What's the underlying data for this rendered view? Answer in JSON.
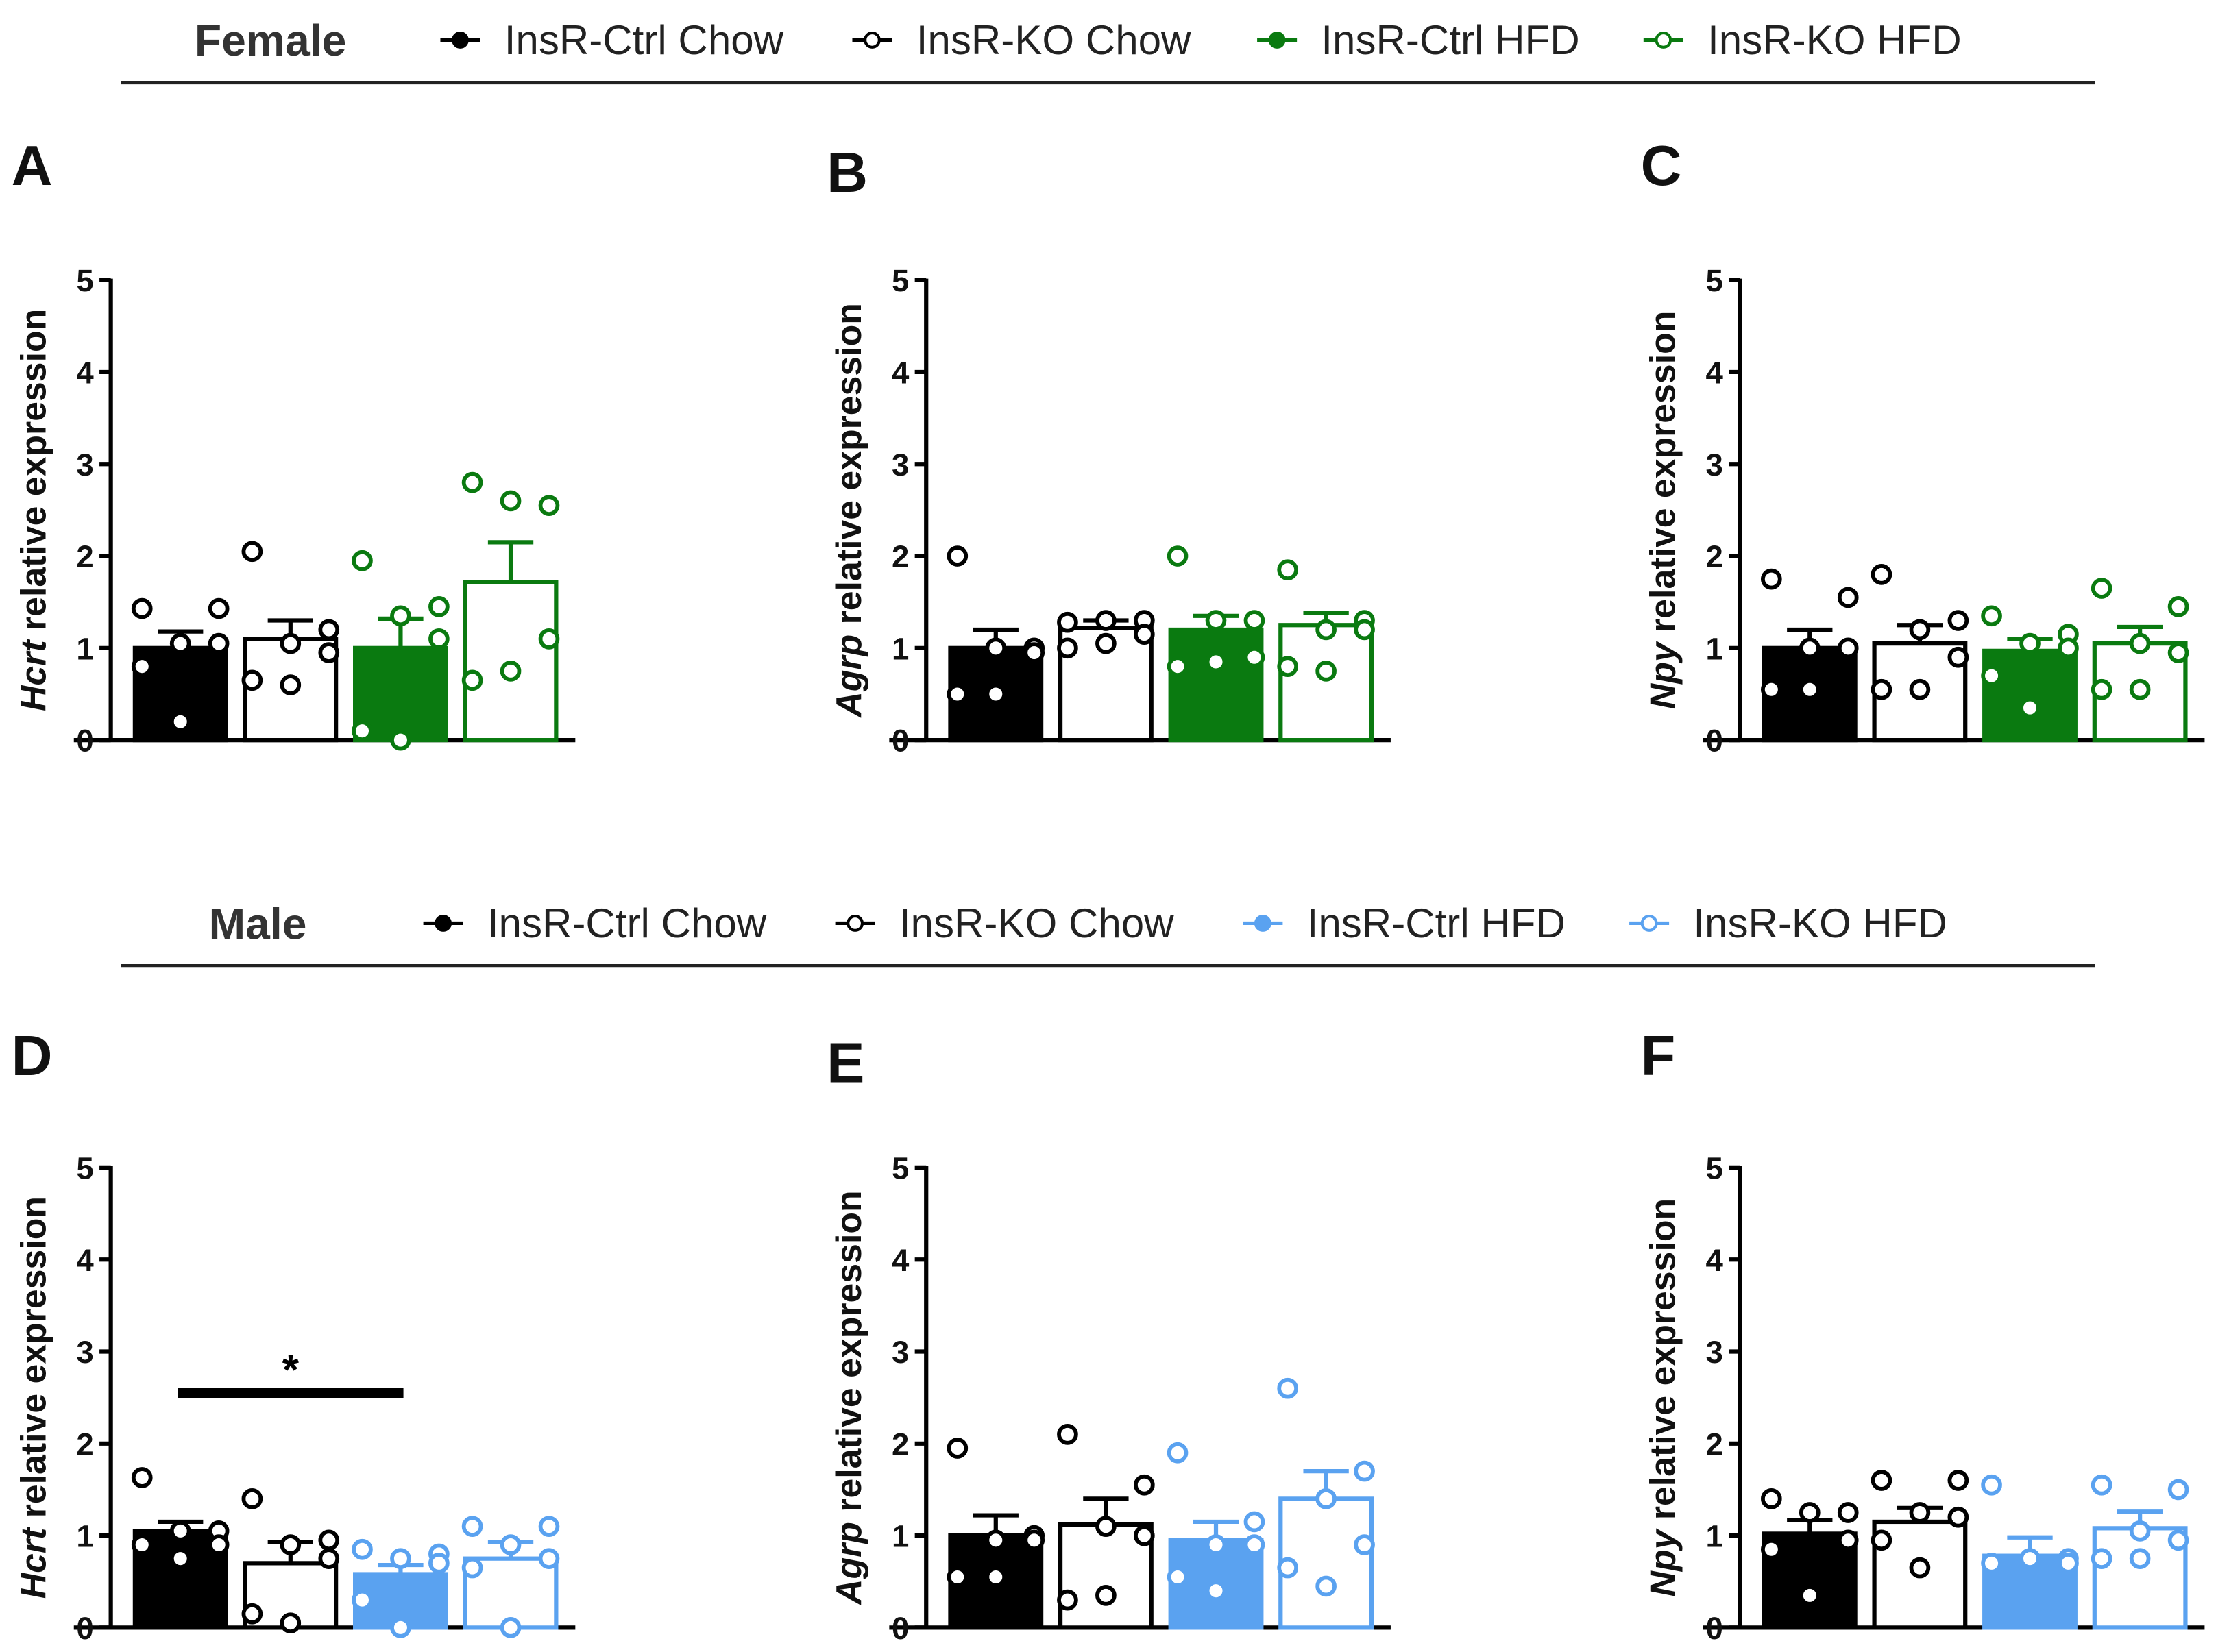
{
  "colors": {
    "black": "#000000",
    "green": "#0a7a10",
    "blue": "#5aa2f0"
  },
  "legends": [
    {
      "sex": "Female",
      "color": "#0a7a10",
      "items": [
        "InsR-Ctrl Chow",
        "InsR-KO Chow",
        "InsR-Ctrl HFD",
        "InsR-KO HFD"
      ]
    },
    {
      "sex": "Male",
      "color": "#5aa2f0",
      "items": [
        "InsR-Ctrl Chow",
        "InsR-KO Chow",
        "InsR-Ctrl HFD",
        "InsR-KO HFD"
      ]
    }
  ],
  "chart_data": [
    {
      "panel": "A",
      "type": "bar",
      "gene": "Hcrt",
      "ylabel_suffix": " relative expression",
      "ylim": [
        0,
        5
      ],
      "yticks": [
        0,
        1,
        2,
        3,
        4,
        5
      ],
      "group": "Female",
      "categories": [
        "InsR-Ctrl Chow",
        "InsR-KO Chow",
        "InsR-Ctrl HFD",
        "InsR-KO HFD"
      ],
      "means": [
        1.0,
        1.1,
        1.0,
        1.72
      ],
      "sem": [
        0.18,
        0.2,
        0.32,
        0.43
      ],
      "points": [
        [
          1.43,
          1.43,
          1.05,
          1.05,
          0.8,
          0.2
        ],
        [
          2.05,
          1.2,
          1.05,
          0.95,
          0.65,
          0.6
        ],
        [
          1.95,
          1.45,
          1.35,
          1.1,
          0.1,
          0.0
        ],
        [
          2.8,
          2.55,
          2.6,
          1.1,
          0.65,
          0.75
        ]
      ]
    },
    {
      "panel": "B",
      "type": "bar",
      "gene": "Agrp",
      "ylabel_suffix": " relative expression",
      "ylim": [
        0,
        5
      ],
      "yticks": [
        0,
        1,
        2,
        3,
        4,
        5
      ],
      "group": "Female",
      "categories": [
        "InsR-Ctrl Chow",
        "InsR-KO Chow",
        "InsR-Ctrl HFD",
        "InsR-KO HFD"
      ],
      "means": [
        1.0,
        1.22,
        1.2,
        1.25
      ],
      "sem": [
        0.2,
        0.08,
        0.15,
        0.13
      ],
      "points": [
        [
          2.0,
          1.0,
          1.0,
          0.95,
          0.5,
          0.5
        ],
        [
          1.28,
          1.3,
          1.3,
          1.15,
          1.0,
          1.05
        ],
        [
          2.0,
          1.3,
          1.3,
          0.9,
          0.8,
          0.85
        ],
        [
          1.85,
          1.3,
          1.2,
          1.2,
          0.8,
          0.75
        ]
      ]
    },
    {
      "panel": "C",
      "type": "bar",
      "gene": "Npy",
      "ylabel_suffix": " relative expression",
      "ylim": [
        0,
        5
      ],
      "yticks": [
        0,
        1,
        2,
        3,
        4,
        5
      ],
      "group": "Female",
      "categories": [
        "InsR-Ctrl Chow",
        "InsR-KO Chow",
        "InsR-Ctrl HFD",
        "InsR-KO HFD"
      ],
      "means": [
        1.0,
        1.05,
        0.97,
        1.05
      ],
      "sem": [
        0.2,
        0.2,
        0.13,
        0.18
      ],
      "points": [
        [
          1.75,
          1.55,
          1.0,
          1.0,
          0.55,
          0.55
        ],
        [
          1.8,
          1.3,
          1.2,
          0.9,
          0.55,
          0.55
        ],
        [
          1.35,
          1.15,
          1.05,
          1.0,
          0.7,
          0.35
        ],
        [
          1.65,
          1.45,
          1.05,
          0.95,
          0.55,
          0.55
        ]
      ]
    },
    {
      "panel": "D",
      "type": "bar",
      "gene": "Hcrt",
      "ylabel_suffix": " relative expression",
      "ylim": [
        0,
        5
      ],
      "yticks": [
        0,
        1,
        2,
        3,
        4,
        5
      ],
      "group": "Male",
      "categories": [
        "InsR-Ctrl Chow",
        "InsR-KO Chow",
        "InsR-Ctrl HFD",
        "InsR-KO HFD"
      ],
      "means": [
        1.05,
        0.7,
        0.58,
        0.75
      ],
      "sem": [
        0.1,
        0.23,
        0.1,
        0.18
      ],
      "points": [
        [
          1.63,
          1.05,
          1.05,
          0.9,
          0.9,
          0.75
        ],
        [
          1.4,
          0.95,
          0.9,
          0.75,
          0.15,
          0.05
        ],
        [
          0.85,
          0.8,
          0.75,
          0.7,
          0.3,
          0.0
        ],
        [
          1.1,
          1.1,
          0.9,
          0.75,
          0.65,
          0.0
        ]
      ],
      "significance": {
        "from": 0,
        "to": 2,
        "y": 2.55,
        "label": "*"
      }
    },
    {
      "panel": "E",
      "type": "bar",
      "gene": "Agrp",
      "ylabel_suffix": " relative expression",
      "ylim": [
        0,
        5
      ],
      "yticks": [
        0,
        1,
        2,
        3,
        4,
        5
      ],
      "group": "Male",
      "categories": [
        "InsR-Ctrl Chow",
        "InsR-KO Chow",
        "InsR-Ctrl HFD",
        "InsR-KO HFD"
      ],
      "means": [
        1.0,
        1.12,
        0.95,
        1.4
      ],
      "sem": [
        0.22,
        0.28,
        0.2,
        0.3
      ],
      "points": [
        [
          1.95,
          1.0,
          0.95,
          0.95,
          0.55,
          0.55
        ],
        [
          2.1,
          1.55,
          1.1,
          1.0,
          0.3,
          0.35
        ],
        [
          1.9,
          1.15,
          0.9,
          0.9,
          0.55,
          0.4
        ],
        [
          2.6,
          1.7,
          1.4,
          0.9,
          0.65,
          0.45
        ]
      ]
    },
    {
      "panel": "F",
      "type": "bar",
      "gene": "Npy",
      "ylabel_suffix": " relative expression",
      "ylim": [
        0,
        5
      ],
      "yticks": [
        0,
        1,
        2,
        3,
        4,
        5
      ],
      "group": "Male",
      "categories": [
        "InsR-Ctrl Chow",
        "InsR-KO Chow",
        "InsR-Ctrl HFD",
        "InsR-KO HFD"
      ],
      "means": [
        1.02,
        1.15,
        0.78,
        1.08
      ],
      "sem": [
        0.15,
        0.15,
        0.2,
        0.18
      ],
      "points": [
        [
          1.4,
          1.25,
          1.25,
          0.95,
          0.85,
          0.35
        ],
        [
          1.6,
          1.6,
          1.25,
          1.2,
          0.95,
          0.65
        ],
        [
          1.55,
          0.75,
          0.75,
          0.7,
          0.7,
          0.75
        ],
        [
          1.55,
          1.5,
          1.05,
          0.95,
          0.75,
          0.75
        ]
      ]
    }
  ]
}
